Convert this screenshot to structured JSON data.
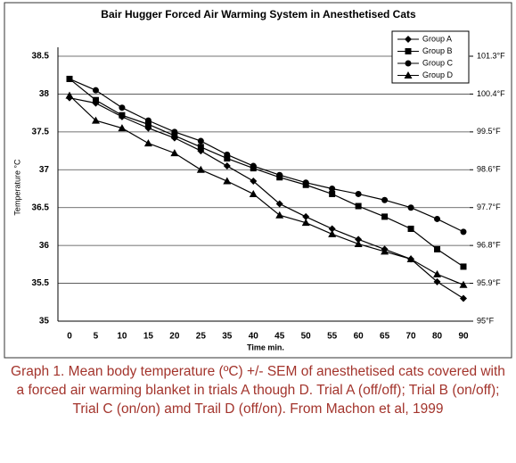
{
  "chart_data": {
    "type": "line",
    "title": "Bair Hugger Forced Air Warming System in Anesthetised Cats",
    "y_label": "Temperature °C",
    "x_label": "Time min.",
    "categories": [
      "0",
      "5",
      "10",
      "15",
      "20",
      "25",
      "35",
      "40",
      "45",
      "50",
      "55",
      "60",
      "65",
      "70",
      "80",
      "90"
    ],
    "series": [
      {
        "name": "Group A",
        "color": "#000000",
        "marker": "diamond",
        "values": [
          37.95,
          37.88,
          37.7,
          37.55,
          37.42,
          37.25,
          37.05,
          36.85,
          36.55,
          36.38,
          36.22,
          36.08,
          35.95,
          35.82,
          35.52,
          35.3
        ]
      },
      {
        "name": "Group B",
        "color": "#000000",
        "marker": "square",
        "values": [
          38.2,
          37.92,
          37.72,
          37.6,
          37.45,
          37.3,
          37.15,
          37.02,
          36.9,
          36.8,
          36.68,
          36.52,
          36.38,
          36.22,
          35.95,
          35.72
        ]
      },
      {
        "name": "Group C",
        "color": "#000000",
        "marker": "circle",
        "values": [
          38.2,
          38.05,
          37.82,
          37.65,
          37.5,
          37.38,
          37.2,
          37.05,
          36.93,
          36.83,
          36.75,
          36.68,
          36.6,
          36.5,
          36.35,
          36.18
        ]
      },
      {
        "name": "Group D",
        "color": "#000000",
        "marker": "triangle",
        "values": [
          37.98,
          37.65,
          37.55,
          37.35,
          37.22,
          37.0,
          36.85,
          36.68,
          36.4,
          36.3,
          36.15,
          36.02,
          35.92,
          35.82,
          35.62,
          35.48
        ]
      }
    ],
    "ylim": [
      35,
      38.5
    ],
    "yticks": [
      35,
      35.5,
      36,
      36.5,
      37,
      37.5,
      38,
      38.5
    ],
    "y2lim": [
      95,
      101.3
    ],
    "y2ticks": [
      {
        "value": 95,
        "label": "95°F"
      },
      {
        "value": 95.9,
        "label": "95.9°F"
      },
      {
        "value": 96.8,
        "label": "96.8°F"
      },
      {
        "value": 97.7,
        "label": "97.7°F"
      },
      {
        "value": 98.6,
        "label": "98.6°F"
      },
      {
        "value": 99.5,
        "label": "99.5°F"
      },
      {
        "value": 100.4,
        "label": "100.4°F"
      },
      {
        "value": 101.3,
        "label": "101.3°F"
      }
    ],
    "grid": true,
    "legend": "top-right"
  },
  "caption": "Graph 1. Mean body temperature (ºC) +/- SEM of anesthetised cats covered with a forced air warming blanket in trials A though D. Trial A (off/off); Trial B (on/off); Trial C (on/on) amd Trail D (off/on). From Machon et al, 1999"
}
